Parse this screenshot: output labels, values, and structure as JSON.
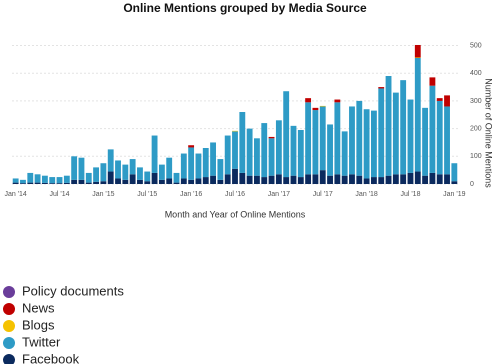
{
  "chart_data": {
    "type": "stacked-bar",
    "title": "Online Mentions grouped by Media Source",
    "x_label": "Month and Year of Online Mentions",
    "y_label": "Number of Online Mentions",
    "categories": [
      "Jan '14",
      null,
      null,
      null,
      null,
      null,
      "Jul '14",
      null,
      null,
      null,
      null,
      null,
      "Jan '15",
      null,
      null,
      null,
      null,
      null,
      "Jul '15",
      null,
      null,
      null,
      null,
      null,
      "Jan '16",
      null,
      null,
      null,
      null,
      null,
      "Jul '16",
      null,
      null,
      null,
      null,
      null,
      "Jan '17",
      null,
      null,
      null,
      null,
      null,
      "Jul '17",
      null,
      null,
      null,
      null,
      null,
      "Jan '18",
      null,
      null,
      null,
      null,
      null,
      "Jul '18",
      null,
      null,
      null,
      null,
      null,
      "Jan '19"
    ],
    "series": [
      {
        "name": "Facebook",
        "color": "#0b2a5e",
        "values": [
          5,
          3,
          5,
          5,
          4,
          3,
          3,
          4,
          15,
          15,
          5,
          8,
          10,
          45,
          20,
          15,
          35,
          15,
          10,
          40,
          15,
          20,
          5,
          20,
          15,
          20,
          25,
          30,
          15,
          35,
          55,
          40,
          30,
          30,
          25,
          30,
          35,
          25,
          30,
          25,
          35,
          35,
          50,
          30,
          35,
          30,
          35,
          30,
          20,
          25,
          25,
          30,
          35,
          35,
          40,
          45,
          30,
          40,
          35,
          35,
          10
        ]
      },
      {
        "name": "Twitter",
        "color": "#2e9bc6",
        "values": [
          15,
          12,
          35,
          30,
          26,
          22,
          22,
          26,
          85,
          80,
          35,
          52,
          65,
          80,
          65,
          55,
          55,
          45,
          35,
          135,
          55,
          75,
          35,
          90,
          117,
          90,
          105,
          120,
          75,
          140,
          135,
          220,
          170,
          135,
          195,
          135,
          195,
          310,
          180,
          170,
          260,
          232,
          230,
          185,
          260,
          160,
          245,
          270,
          250,
          240,
          320,
          360,
          295,
          340,
          265,
          410,
          245,
          315,
          265,
          245,
          65
        ]
      },
      {
        "name": "Blogs",
        "color": "#f5c200",
        "values": [
          0,
          0,
          0,
          0,
          0,
          0,
          0,
          0,
          0,
          0,
          0,
          0,
          0,
          0,
          0,
          0,
          0,
          0,
          0,
          0,
          0,
          0,
          0,
          0,
          0,
          0,
          0,
          0,
          0,
          0,
          2,
          0,
          0,
          0,
          0,
          0,
          0,
          0,
          0,
          0,
          0,
          0,
          2,
          0,
          0,
          0,
          0,
          0,
          0,
          0,
          0,
          0,
          0,
          0,
          0,
          2,
          0,
          0,
          0,
          0,
          0
        ]
      },
      {
        "name": "News",
        "color": "#c00000",
        "values": [
          0,
          0,
          0,
          0,
          0,
          0,
          0,
          0,
          0,
          0,
          0,
          0,
          0,
          0,
          0,
          0,
          0,
          0,
          0,
          0,
          0,
          0,
          0,
          0,
          8,
          0,
          0,
          0,
          0,
          0,
          0,
          0,
          0,
          0,
          0,
          5,
          0,
          0,
          0,
          0,
          15,
          8,
          0,
          0,
          10,
          0,
          0,
          0,
          0,
          0,
          5,
          0,
          0,
          0,
          0,
          45,
          0,
          30,
          10,
          40,
          0
        ]
      },
      {
        "name": "Policy documents",
        "color": "#6a3d9a",
        "values": [
          0,
          0,
          0,
          0,
          0,
          0,
          0,
          0,
          0,
          0,
          0,
          0,
          0,
          0,
          0,
          0,
          0,
          0,
          0,
          0,
          0,
          0,
          0,
          0,
          0,
          0,
          0,
          0,
          0,
          0,
          0,
          0,
          0,
          0,
          0,
          0,
          0,
          0,
          0,
          0,
          0,
          0,
          0,
          0,
          0,
          0,
          0,
          0,
          0,
          0,
          0,
          0,
          0,
          0,
          0,
          0,
          0,
          0,
          0,
          0,
          0
        ]
      }
    ],
    "legend_order": [
      "Policy documents",
      "News",
      "Blogs",
      "Twitter",
      "Facebook"
    ],
    "ylim": [
      0,
      520
    ],
    "yticks": [
      0,
      100,
      200,
      300,
      400,
      500
    ],
    "grid": true
  }
}
